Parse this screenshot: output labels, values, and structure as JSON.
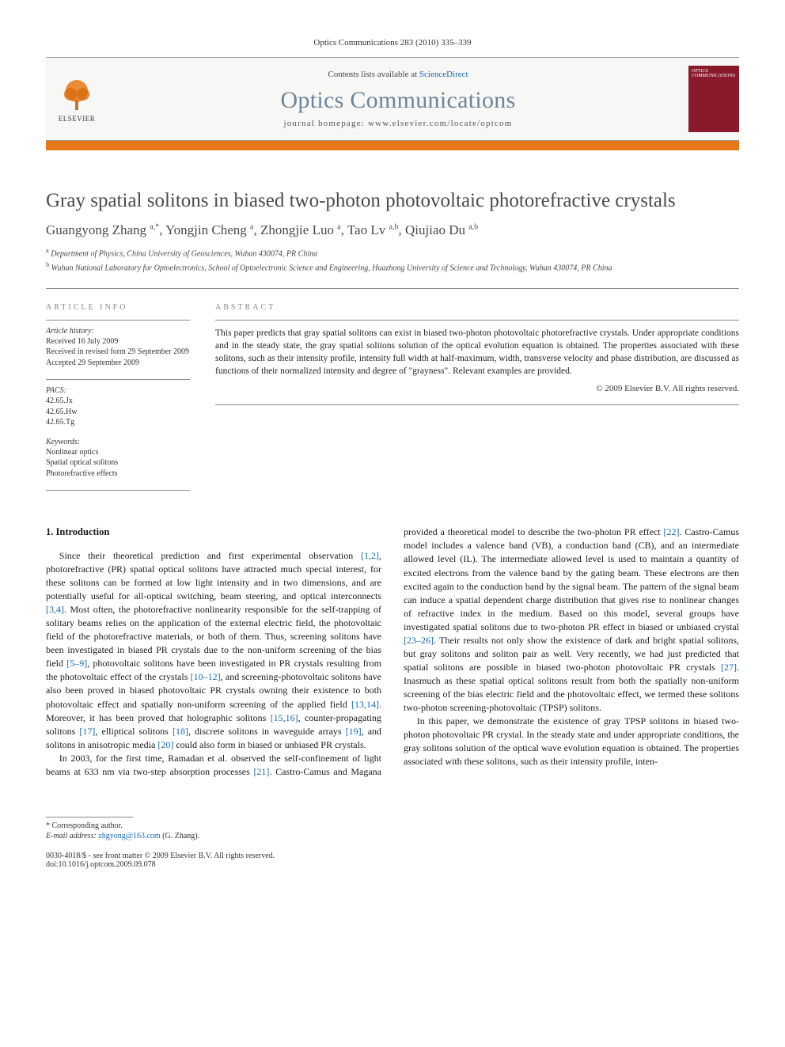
{
  "citation": "Optics Communications 283 (2010) 335–339",
  "header": {
    "contents_prefix": "Contents lists available at ",
    "contents_link": "ScienceDirect",
    "journal": "Optics Communications",
    "homepage_label": "journal homepage: www.elsevier.com/locate/optcom",
    "publisher": "ELSEVIER",
    "cover_text": "OPTICS COMMUNICATIONS"
  },
  "paper": {
    "title": "Gray spatial solitons in biased two-photon photovoltaic photorefractive crystals",
    "authors_html": "Guangyong Zhang <sup>a,*</sup>, Yongjin Cheng <sup>a</sup>, Zhongjie Luo <sup>a</sup>, Tao Lv <sup>a,b</sup>, Qiujiao Du <sup>a,b</sup>",
    "affiliations": [
      "a Department of Physics, China University of Geosciences, Wuhan 430074, PR China",
      "b Wuhan National Laboratory for Optoelectronics, School of Optoelectronic Science and Engineering, Huazhong University of Science and Technology, Wuhan 430074, PR China"
    ]
  },
  "article_info": {
    "label": "ARTICLE INFO",
    "history_head": "Article history:",
    "history": [
      "Received 16 July 2009",
      "Received in revised form 29 September 2009",
      "Accepted 29 September 2009"
    ],
    "pacs_head": "PACS:",
    "pacs": [
      "42.65.Jx",
      "42.65.Hw",
      "42.65.Tg"
    ],
    "keywords_head": "Keywords:",
    "keywords": [
      "Nonlinear optics",
      "Spatial optical solitons",
      "Photorefractive effects"
    ]
  },
  "abstract": {
    "label": "ABSTRACT",
    "text": "This paper predicts that gray spatial solitons can exist in biased two-photon photovoltaic photorefractive crystals. Under appropriate conditions and in the steady state, the gray spatial solitons solution of the optical evolution equation is obtained. The properties associated with these solitons, such as their intensity profile, intensity full width at half-maximum, width, transverse velocity and phase distribution, are discussed as functions of their normalized intensity and degree of \"grayness\". Relevant examples are provided.",
    "copyright": "© 2009 Elsevier B.V. All rights reserved."
  },
  "body": {
    "intro_head": "1. Introduction",
    "p1": "Since their theoretical prediction and first experimental observation [1,2], photorefractive (PR) spatial optical solitons have attracted much special interest, for these solitons can be formed at low light intensity and in two dimensions, and are potentially useful for all-optical switching, beam steering, and optical interconnects [3,4]. Most often, the photorefractive nonlinearity responsible for the self-trapping of solitary beams relies on the application of the external electric field, the photovoltaic field of the photorefractive materials, or both of them. Thus, screening solitons have been investigated in biased PR crystals due to the non-uniform screening of the bias field [5–9], photovoltaic solitons have been investigated in PR crystals resulting from the photovoltaic effect of the crystals [10–12], and screening-photovoltaic solitons have also been proved in biased photovoltaic PR crystals owning their existence to both photovoltaic effect and spatially non-uniform screening of the applied field [13,14]. Moreover, it has been proved that holographic solitons [15,16], counter-propagating solitons [17], elliptical solitons [18], discrete solitons in waveguide arrays [19], and solitons in anisotropic media [20] could also form in biased or unbiased PR crystals.",
    "p2": "In 2003, for the first time, Ramadan et al. observed the self-confinement of light beams at 633 nm via two-step absorption processes [21]. Castro-Camus and Magana provided a theoretical model to describe the two-photon PR effect [22]. Castro-Camus model includes a valence band (VB), a conduction band (CB), and an intermediate allowed level (IL). The intermediate allowed level is used to maintain a quantity of excited electrons from the valence band by the gating beam. These electrons are then excited again to the conduction band by the signal beam. The pattern of the signal beam can induce a spatial dependent charge distribution that gives rise to nonlinear changes of refractive index in the medium. Based on this model, several groups have investigated spatial solitons due to two-photon PR effect in biased or unbiased crystal [23–26]. Their results not only show the existence of dark and bright spatial solitons, but gray solitons and soliton pair as well. Very recently, we had just predicted that spatial solitons are possible in biased two-photon photovoltaic PR crystals [27]. Inasmuch as these spatial optical solitons result from both the spatially non-uniform screening of the bias electric field and the photovoltaic effect, we termed these solitons two-photon screening-photovoltaic (TPSP) solitons.",
    "p3": "In this paper, we demonstrate the existence of gray TPSP solitons in biased two-photon photovoltaic PR crystal. In the steady state and under appropriate conditions, the gray solitons solution of the optical wave evolution equation is obtained. The properties associated with these solitons, such as their intensity profile, inten-"
  },
  "footnotes": {
    "corr": "* Corresponding author.",
    "email_label": "E-mail address: ",
    "email": "zhgyong@163.com",
    "email_suffix": " (G. Zhang)."
  },
  "footer": {
    "left1": "0030-4018/$ - see front matter © 2009 Elsevier B.V. All rights reserved.",
    "left2": "doi:10.1016/j.optcom.2009.09.078"
  },
  "colors": {
    "orange": "#e67817",
    "link": "#1768b3",
    "journal_gray": "#6d859a",
    "cover_red": "#8a1a2b"
  }
}
